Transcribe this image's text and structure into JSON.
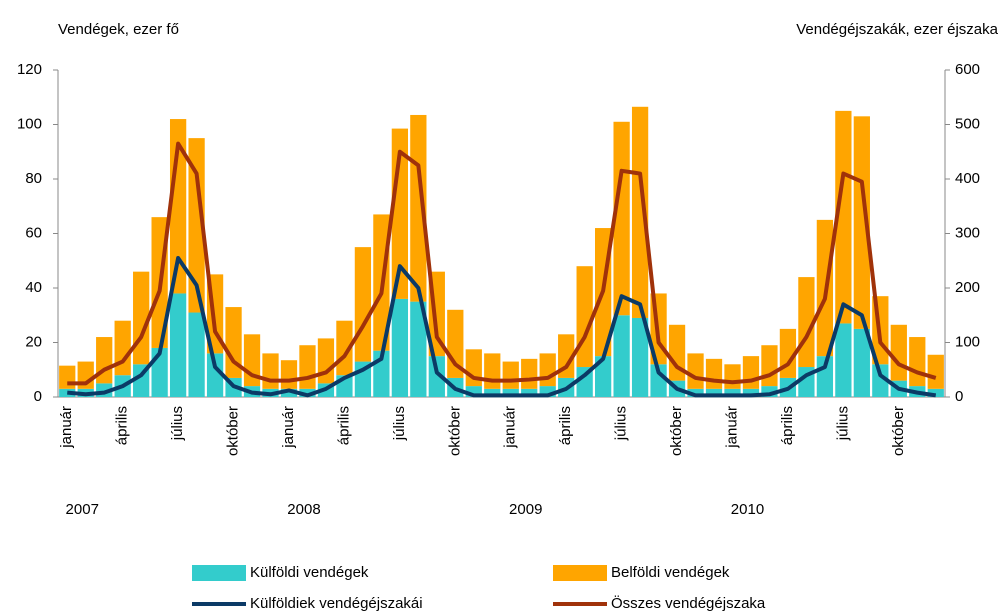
{
  "chart_data": {
    "type": "bar",
    "ylabel": "Vendégek, ezer fő",
    "y2label": "Vendégéjszakák, ezer éjszaka",
    "categories": [
      "január",
      null,
      null,
      "április",
      null,
      null,
      "július",
      null,
      null,
      "október",
      null,
      null,
      "január",
      null,
      null,
      "április",
      null,
      null,
      "július",
      null,
      null,
      "október",
      null,
      null,
      "január",
      null,
      null,
      "április",
      null,
      null,
      "július",
      null,
      null,
      "október",
      null,
      null,
      "január",
      null,
      null,
      "április",
      null,
      null,
      "július",
      null,
      null,
      "október",
      null,
      null
    ],
    "year_labels": [
      "2007",
      "2008",
      "2009",
      "2010"
    ],
    "ylim": [
      0,
      120
    ],
    "yticks": [
      0,
      20,
      40,
      60,
      80,
      100,
      120
    ],
    "y2lim": [
      0,
      600
    ],
    "y2ticks": [
      0,
      100,
      200,
      300,
      400,
      500,
      600
    ],
    "series": [
      {
        "name": "Külföldi vendégek",
        "type": "bar",
        "color": "#33cccc",
        "values": [
          3,
          3,
          5,
          8,
          12,
          18,
          38,
          31,
          16,
          7,
          4,
          3,
          3,
          3,
          5,
          8,
          13,
          17,
          36,
          35,
          15,
          7,
          4,
          3,
          3,
          3,
          4,
          7,
          11,
          15,
          30,
          29,
          12,
          6,
          3,
          3,
          3,
          3,
          4,
          7,
          11,
          15,
          27,
          25,
          12,
          6,
          4,
          3
        ]
      },
      {
        "name": "Belföldi vendégek",
        "type": "bar",
        "color": "#ffa500",
        "values": [
          8.5,
          10,
          17,
          20,
          34,
          48,
          64,
          64,
          29,
          26,
          19,
          13,
          10.5,
          16,
          16.5,
          20,
          42,
          50,
          62.5,
          68.5,
          31,
          25,
          13.5,
          13,
          10,
          11,
          12,
          16,
          37,
          47,
          71,
          77.5,
          26,
          20.5,
          13,
          11,
          9,
          12,
          15,
          18,
          33,
          50,
          78,
          78,
          25,
          20.5,
          18,
          12.5
        ]
      },
      {
        "name": "Külföldiek vendégéjszakái",
        "type": "line",
        "axis": "y2",
        "color": "#0b3a66",
        "values": [
          8,
          5,
          8,
          20,
          40,
          80,
          255,
          205,
          55,
          20,
          8,
          5,
          12,
          3,
          15,
          35,
          50,
          70,
          240,
          200,
          45,
          15,
          3,
          3,
          3,
          3,
          3,
          15,
          40,
          70,
          185,
          170,
          45,
          15,
          3,
          3,
          3,
          3,
          5,
          15,
          40,
          55,
          170,
          150,
          40,
          15,
          8,
          3
        ]
      },
      {
        "name": "Összes vendégéjszaka",
        "type": "line",
        "axis": "y2",
        "color": "#a0320a",
        "values": [
          25,
          25,
          50,
          65,
          110,
          195,
          465,
          410,
          120,
          65,
          40,
          30,
          30,
          35,
          45,
          75,
          130,
          190,
          450,
          425,
          110,
          60,
          35,
          30,
          30,
          32,
          35,
          55,
          110,
          195,
          415,
          410,
          100,
          55,
          35,
          30,
          27,
          30,
          40,
          60,
          110,
          180,
          410,
          395,
          100,
          60,
          45,
          35
        ]
      }
    ]
  }
}
